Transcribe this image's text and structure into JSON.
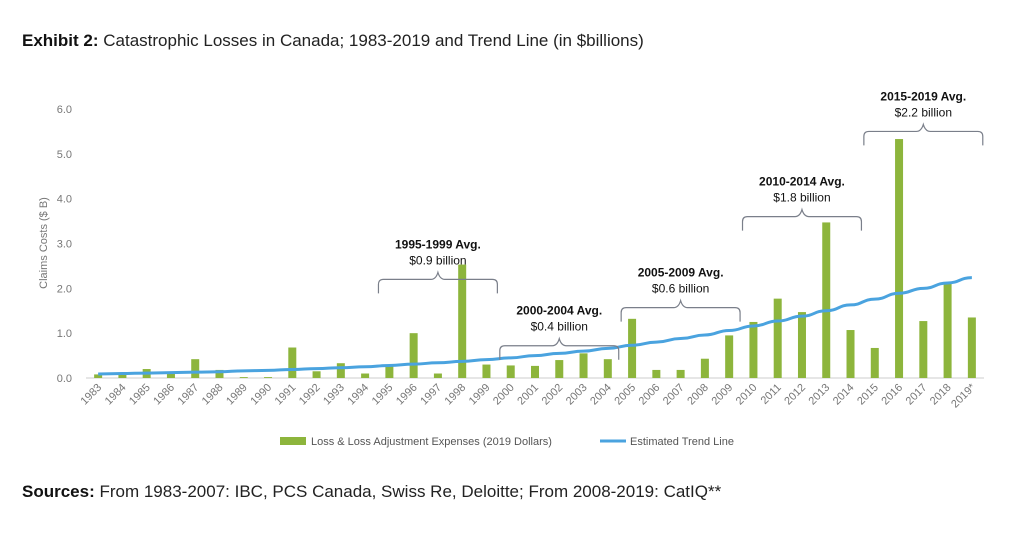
{
  "title": {
    "bold": "Exhibit 2:",
    "rest": " Catastrophic Losses in Canada; 1983-2019 and Trend Line (in $billions)"
  },
  "sources": {
    "bold": "Sources:",
    "rest": " From 1983-2007: IBC, PCS Canada, Swiss Re, Deloitte; From 2008-2019: CatIQ**"
  },
  "colors": {
    "bar": "#8DB53C",
    "trend": "#4AA3DF",
    "axis": "#cccccc",
    "brace": "#7a7f8a"
  },
  "chart_data": {
    "type": "bar",
    "ylabel": "Claims Costs ($ B)",
    "xlabel": "",
    "ylim": [
      0,
      6
    ],
    "y_ticks": [
      "0.0",
      "1.0",
      "2.0",
      "3.0",
      "4.0",
      "5.0",
      "6.0"
    ],
    "categories": [
      "1983",
      "1984",
      "1985",
      "1986",
      "1987",
      "1988",
      "1989",
      "1990",
      "1991",
      "1992",
      "1993",
      "1994",
      "1995",
      "1996",
      "1997",
      "1998",
      "1999",
      "2000",
      "2001",
      "2002",
      "2003",
      "2004",
      "2005",
      "2006",
      "2007",
      "2008",
      "2009",
      "2010",
      "2011",
      "2012",
      "2013",
      "2014",
      "2015",
      "2016",
      "2017",
      "2018",
      "2019*"
    ],
    "series": [
      {
        "name": "Loss & Loss Adjustment Expenses (2019 Dollars)",
        "type": "bar",
        "values": [
          0.08,
          0.1,
          0.2,
          0.1,
          0.42,
          0.18,
          0.02,
          0.02,
          0.68,
          0.15,
          0.33,
          0.1,
          0.3,
          1.0,
          0.1,
          2.53,
          0.3,
          0.28,
          0.27,
          0.4,
          0.55,
          0.42,
          1.32,
          0.18,
          0.18,
          0.43,
          0.95,
          1.25,
          1.77,
          1.47,
          3.47,
          1.07,
          0.67,
          5.33,
          1.27,
          2.13,
          1.35
        ]
      },
      {
        "name": "Estimated Trend Line",
        "type": "line",
        "values": [
          0.09,
          0.1,
          0.11,
          0.12,
          0.13,
          0.14,
          0.16,
          0.17,
          0.19,
          0.21,
          0.23,
          0.25,
          0.28,
          0.31,
          0.34,
          0.37,
          0.41,
          0.45,
          0.5,
          0.55,
          0.6,
          0.66,
          0.73,
          0.8,
          0.88,
          0.96,
          1.06,
          1.16,
          1.27,
          1.38,
          1.5,
          1.63,
          1.76,
          1.89,
          2.0,
          2.12,
          2.24
        ]
      }
    ],
    "annotations": [
      {
        "title": "1995-1999 Avg.",
        "value": "$0.9 billion",
        "from": "1995",
        "to": "1999",
        "level": 2.2
      },
      {
        "title": "2000-2004 Avg.",
        "value": "$0.4 billion",
        "from": "2000",
        "to": "2004",
        "level": 0.72
      },
      {
        "title": "2005-2009 Avg.",
        "value": "$0.6 billion",
        "from": "2005",
        "to": "2009",
        "level": 1.57
      },
      {
        "title": "2010-2014 Avg.",
        "value": "$1.8 billion",
        "from": "2010",
        "to": "2014",
        "level": 3.6
      },
      {
        "title": "2015-2019 Avg.",
        "value": "$2.2 billion",
        "from": "2015",
        "to": "2019*",
        "level": 5.5
      }
    ],
    "legend_position": "bottom",
    "grid": false
  }
}
